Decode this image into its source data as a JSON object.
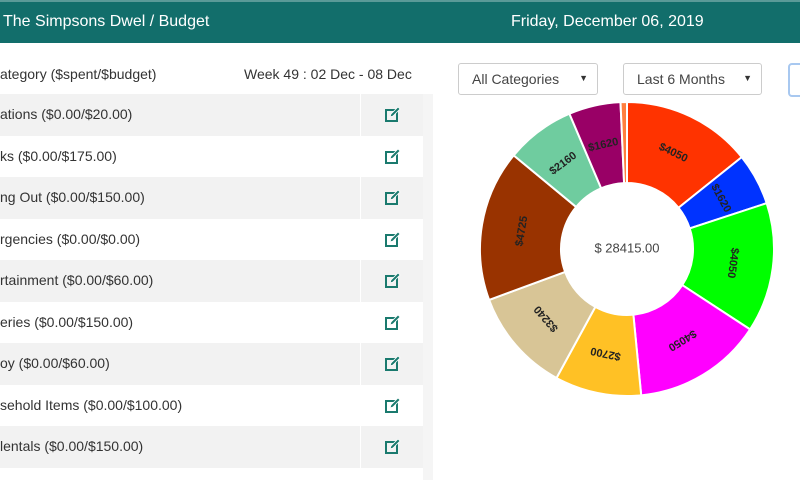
{
  "header": {
    "title": "The Simpsons Dwel / Budget",
    "date": "Friday, December 06, 2019"
  },
  "list": {
    "column_header": "ategory ($spent/$budget)",
    "week": "Week 49 : 02 Dec - 08 Dec",
    "rows": [
      {
        "label": "ations ($0.00/$20.00)"
      },
      {
        "label": "ks ($0.00/$175.00)"
      },
      {
        "label": "ng Out ($0.00/$150.00)"
      },
      {
        "label": "rgencies ($0.00/$0.00)"
      },
      {
        "label": "rtainment ($0.00/$60.00)"
      },
      {
        "label": "eries ($0.00/$150.00)"
      },
      {
        "label": "oy ($0.00/$60.00)"
      },
      {
        "label": "sehold Items ($0.00/$100.00)"
      },
      {
        "label": "lentals ($0.00/$150.00)"
      }
    ],
    "edit_icon": "edit-icon",
    "accent": "#1a7a6e"
  },
  "filters": {
    "category": "All Categories",
    "period": "Last 6 Months"
  },
  "chart_data": {
    "type": "pie",
    "variant": "doughnut",
    "center_label": "$ 28415.00",
    "slices": [
      {
        "label": "$4050",
        "value": 4050,
        "color": "#ff3300"
      },
      {
        "label": "$1620",
        "value": 1620,
        "color": "#0033ff"
      },
      {
        "label": "$4050",
        "value": 4050,
        "color": "#00ff00"
      },
      {
        "label": "$4050",
        "value": 4050,
        "color": "#ff00ff"
      },
      {
        "label": "$2700",
        "value": 2700,
        "color": "#ffc125"
      },
      {
        "label": "$3240",
        "value": 3240,
        "color": "#d8c596"
      },
      {
        "label": "$4725",
        "value": 4725,
        "color": "#993300"
      },
      {
        "label": "$2160",
        "value": 2160,
        "color": "#6fcc9f"
      },
      {
        "label": "$1620",
        "value": 1620,
        "color": "#990066"
      },
      {
        "label": "",
        "value": 200,
        "color": "#ff7f3f"
      }
    ]
  }
}
